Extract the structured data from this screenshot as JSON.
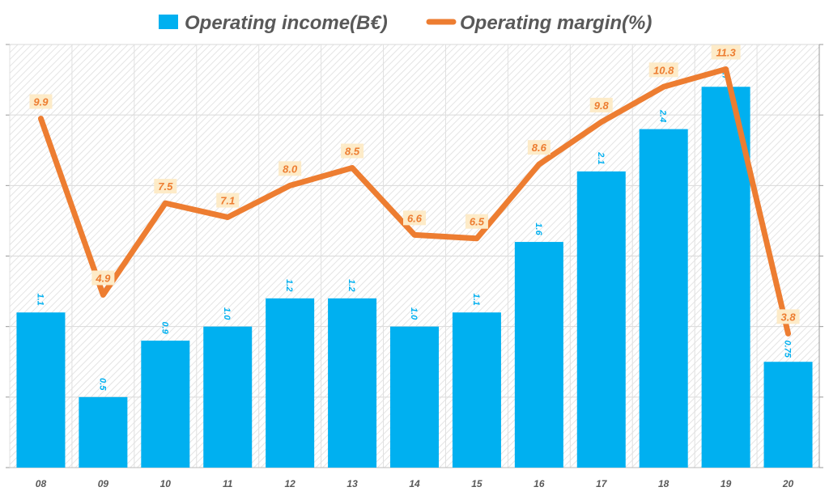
{
  "chart_data": {
    "type": "bar+line",
    "categories": [
      "08",
      "09",
      "10",
      "11",
      "12",
      "13",
      "14",
      "15",
      "16",
      "17",
      "18",
      "19",
      "20"
    ],
    "series": [
      {
        "name": "Operating income(B€)",
        "type": "bar",
        "axis": "left",
        "color": "#00b0f0",
        "values": [
          1.1,
          0.5,
          0.9,
          1.0,
          1.2,
          1.2,
          1.0,
          1.1,
          1.6,
          2.1,
          2.4,
          2.7,
          0.75
        ],
        "labels": [
          "1.1",
          "0.5",
          "0.9",
          "1.0",
          "1.2",
          "1.2",
          "1.0",
          "1.1",
          "1.6",
          "2.1",
          "2.4",
          "2.7",
          "0.75"
        ]
      },
      {
        "name": "Operating margin(%)",
        "type": "line",
        "axis": "right",
        "color": "#ed7d31",
        "values": [
          9.9,
          4.9,
          7.5,
          7.1,
          8.0,
          8.5,
          6.6,
          6.5,
          8.6,
          9.8,
          10.8,
          11.3,
          3.8
        ],
        "labels": [
          "9.9",
          "4.9",
          "7.5",
          "7.1",
          "8.0",
          "8.5",
          "6.6",
          "6.5",
          "8.6",
          "9.8",
          "10.8",
          "11.3",
          "3.8"
        ]
      }
    ],
    "ylim_left": [
      0,
      3
    ],
    "ylim_right": [
      0,
      12
    ],
    "grid": true,
    "legend": "top-center"
  }
}
